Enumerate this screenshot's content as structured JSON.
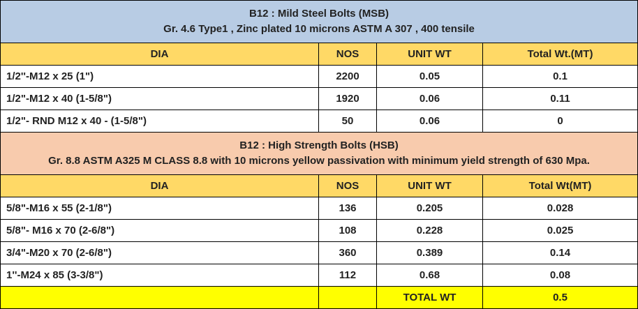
{
  "sections": [
    {
      "title": "B12 : Mild Steel Bolts (MSB)",
      "subtitle": "Gr. 4.6 Type1 , Zinc plated 10 microns ASTM A 307 , 400 tensile",
      "columns": [
        "DIA",
        "NOS",
        "UNIT WT",
        "Total Wt.(MT)"
      ],
      "rows": [
        [
          "1/2''-M12 x 25 (1\")",
          "2200",
          "0.05",
          "0.1"
        ],
        [
          "1/2\"-M12 x 40 (1-5/8\")",
          "1920",
          "0.06",
          "0.11"
        ],
        [
          "1/2\"- RND M12 x 40 - (1-5/8\")",
          "50",
          "0.06",
          "0"
        ]
      ]
    },
    {
      "title": "B12 : High Strength Bolts (HSB)",
      "subtitle": "Gr. 8.8 ASTM A325 M CLASS 8.8 with 10 microns yellow passivation with minimum yield strength of 630 Mpa.",
      "columns": [
        "DIA",
        "NOS",
        "UNIT WT",
        "Total Wt(MT)"
      ],
      "rows": [
        [
          "5/8\"-M16 x 55 (2-1/8\")",
          "136",
          "0.205",
          "0.028"
        ],
        [
          "5/8\"- M16 x 70 (2-6/8\")",
          "108",
          "0.228",
          "0.025"
        ],
        [
          "3/4\"-M20 x 70 (2-6/8\")",
          "360",
          "0.389",
          "0.14"
        ],
        [
          "1''-M24 x 85 (3-3/8\")",
          "112",
          "0.68",
          "0.08"
        ]
      ]
    }
  ],
  "total": {
    "label": "TOTAL WT",
    "value": "0.5"
  }
}
